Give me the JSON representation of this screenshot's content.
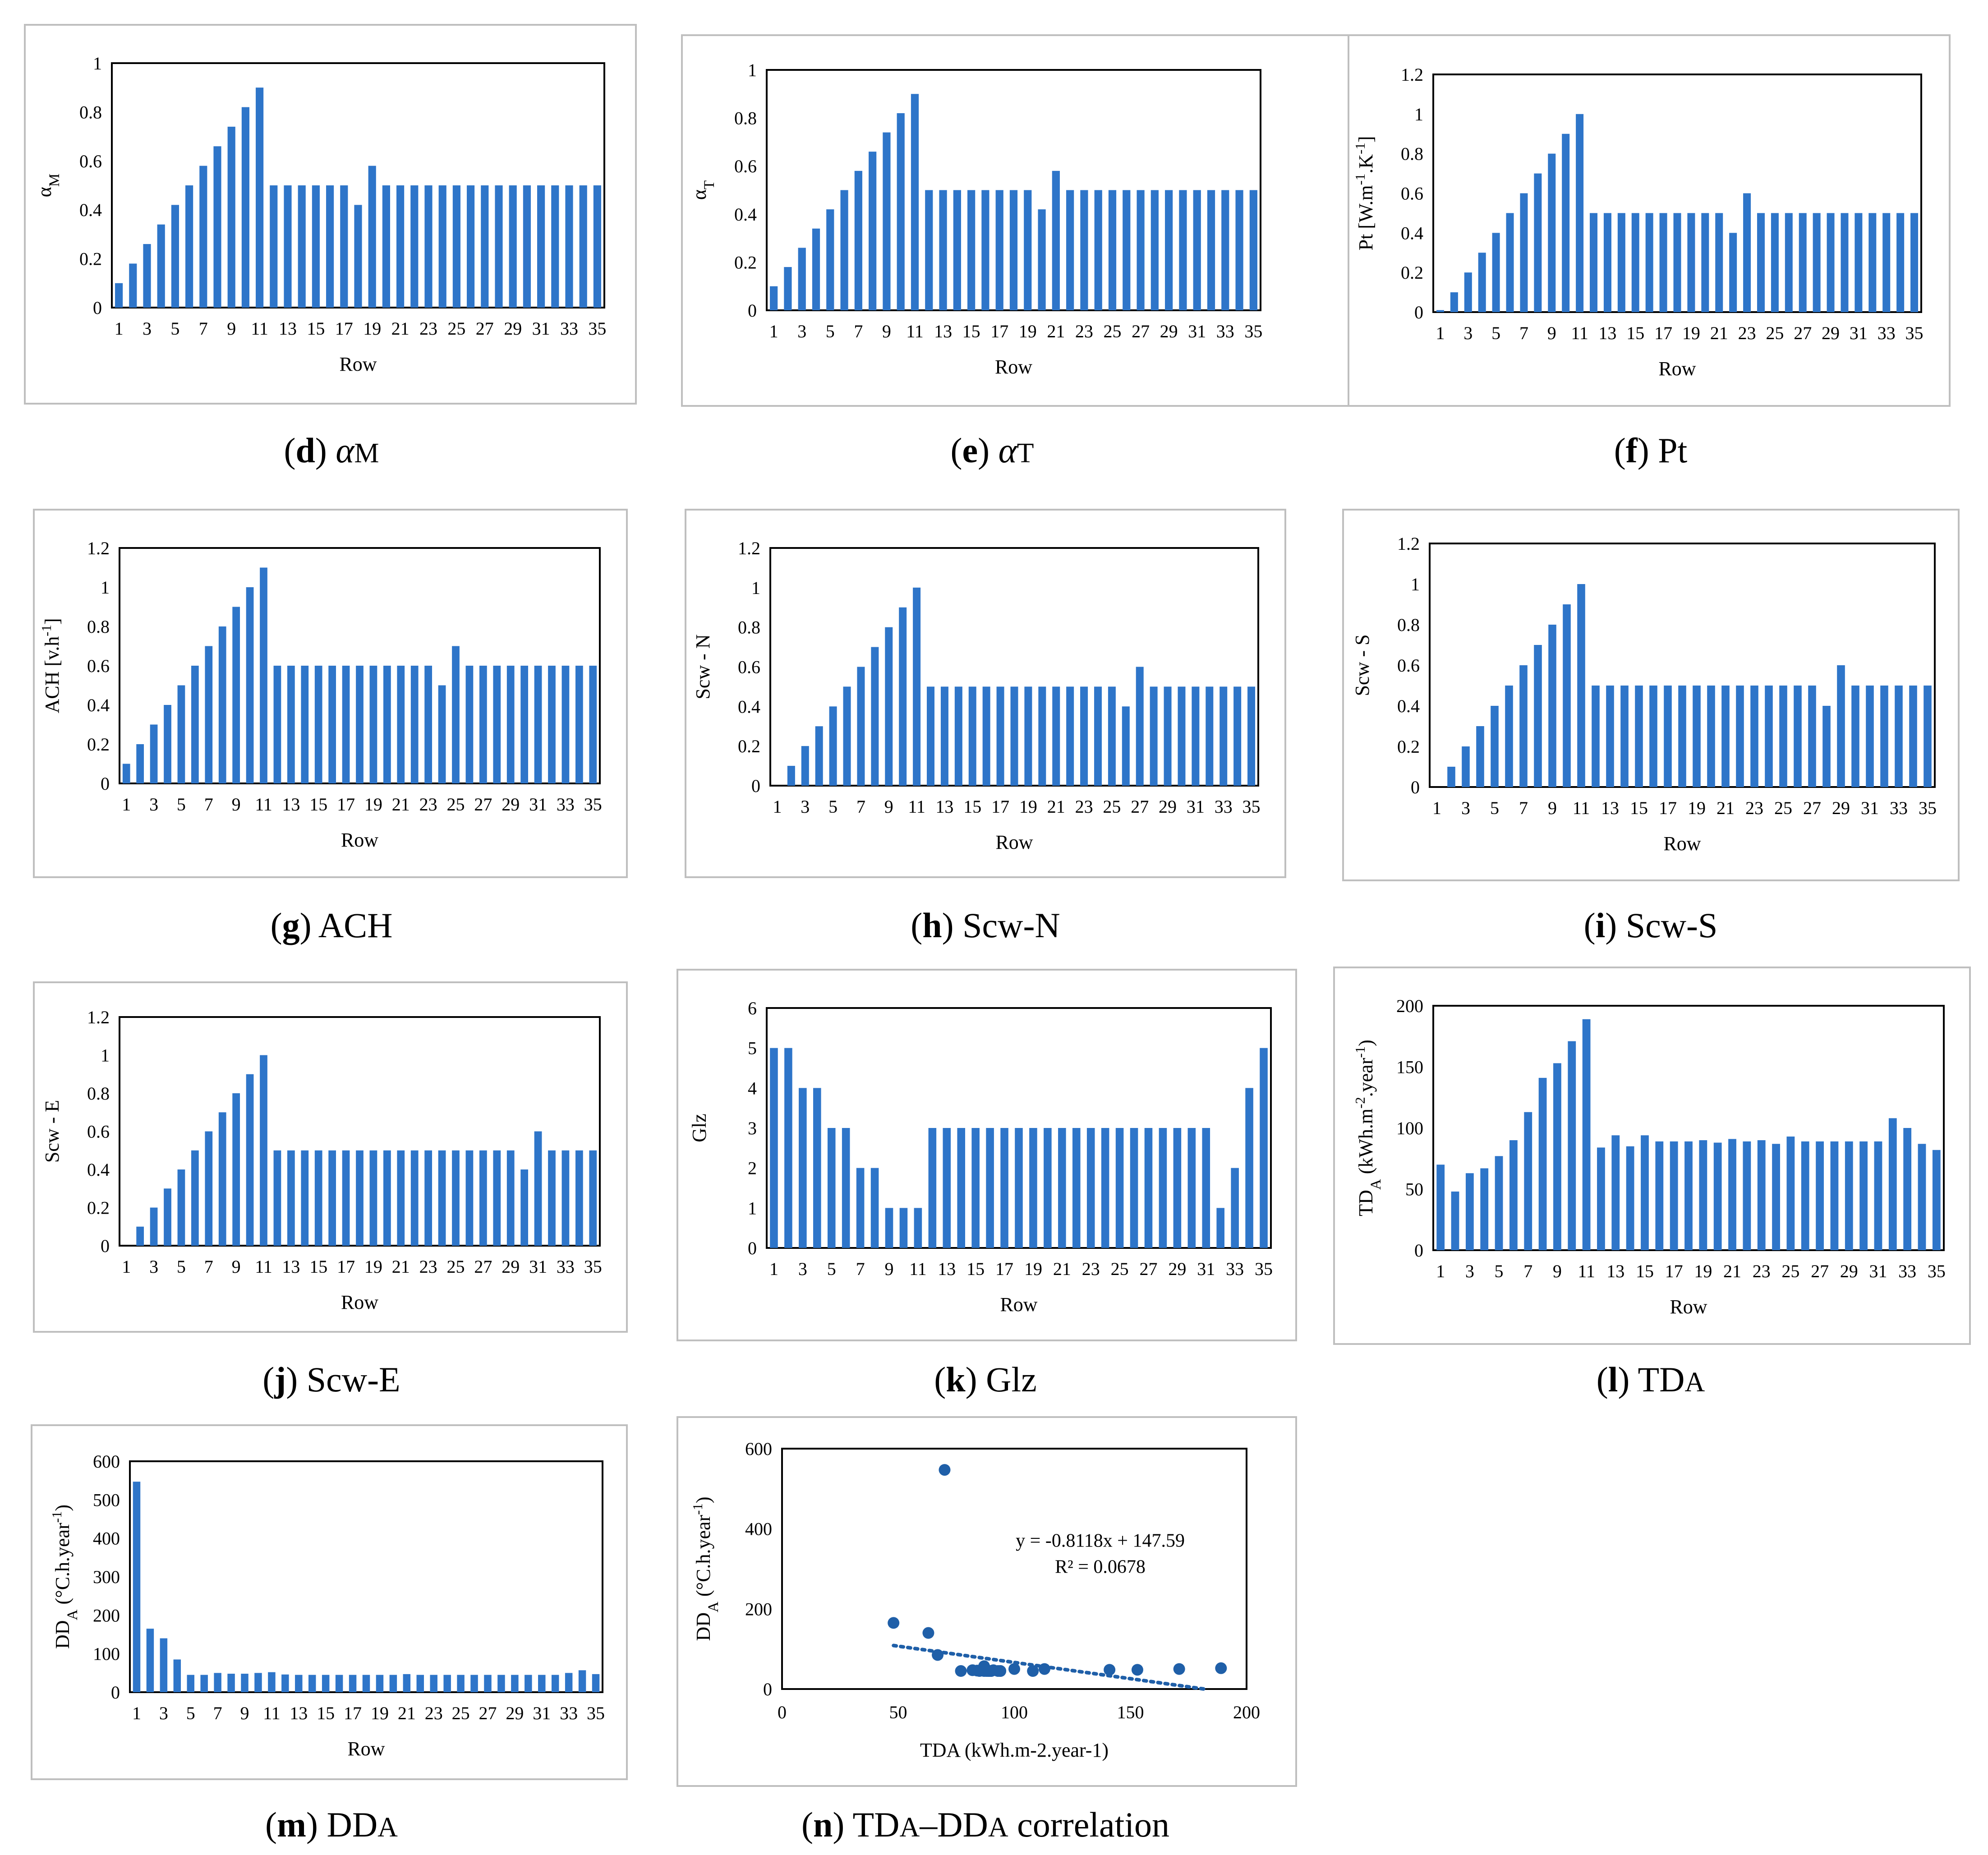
{
  "colors": {
    "bar": "#2E75C9",
    "frame": "#BFBFBF",
    "axis": "#000000",
    "point": "#1F5FA8"
  },
  "chart_data": [
    {
      "id": "d",
      "type": "bar",
      "caption_letter": "d",
      "caption_text": "αM",
      "ylabel": "αM",
      "xlabel": "Row",
      "ylim": [
        0,
        1
      ],
      "yticks": [
        "0",
        "0.2",
        "0.4",
        "0.6",
        "0.8",
        "1"
      ],
      "categories": [
        "1",
        "2",
        "3",
        "4",
        "5",
        "6",
        "7",
        "8",
        "9",
        "10",
        "11",
        "12",
        "13",
        "14",
        "15",
        "16",
        "17",
        "18",
        "19",
        "20",
        "21",
        "22",
        "23",
        "24",
        "25",
        "26",
        "27",
        "28",
        "29",
        "30",
        "31",
        "32",
        "33",
        "34",
        "35"
      ],
      "xticks": [
        "1",
        "3",
        "5",
        "7",
        "9",
        "11",
        "13",
        "15",
        "17",
        "19",
        "21",
        "23",
        "25",
        "27",
        "29",
        "31",
        "33",
        "35"
      ],
      "values": [
        0.1,
        0.18,
        0.26,
        0.34,
        0.42,
        0.5,
        0.58,
        0.66,
        0.74,
        0.82,
        0.9,
        0.5,
        0.5,
        0.5,
        0.5,
        0.5,
        0.5,
        0.42,
        0.58,
        0.5,
        0.5,
        0.5,
        0.5,
        0.5,
        0.5,
        0.5,
        0.5,
        0.5,
        0.5,
        0.5,
        0.5,
        0.5,
        0.5,
        0.5,
        0.5
      ]
    },
    {
      "id": "e",
      "type": "bar",
      "caption_letter": "e",
      "caption_text": "αT",
      "ylabel": "αT",
      "xlabel": "Row",
      "ylim": [
        0,
        1
      ],
      "yticks": [
        "0",
        "0.2",
        "0.4",
        "0.6",
        "0.8",
        "1"
      ],
      "categories": [
        "1",
        "2",
        "3",
        "4",
        "5",
        "6",
        "7",
        "8",
        "9",
        "10",
        "11",
        "12",
        "13",
        "14",
        "15",
        "16",
        "17",
        "18",
        "19",
        "20",
        "21",
        "22",
        "23",
        "24",
        "25",
        "26",
        "27",
        "28",
        "29",
        "30",
        "31",
        "32",
        "33",
        "34",
        "35"
      ],
      "xticks": [
        "1",
        "3",
        "5",
        "7",
        "9",
        "11",
        "13",
        "15",
        "17",
        "19",
        "21",
        "23",
        "25",
        "27",
        "29",
        "31",
        "33",
        "35"
      ],
      "values": [
        0.1,
        0.18,
        0.26,
        0.34,
        0.42,
        0.5,
        0.58,
        0.66,
        0.74,
        0.82,
        0.9,
        0.5,
        0.5,
        0.5,
        0.5,
        0.5,
        0.5,
        0.5,
        0.5,
        0.42,
        0.58,
        0.5,
        0.5,
        0.5,
        0.5,
        0.5,
        0.5,
        0.5,
        0.5,
        0.5,
        0.5,
        0.5,
        0.5,
        0.5,
        0.5
      ]
    },
    {
      "id": "f",
      "type": "bar",
      "caption_letter": "f",
      "caption_text": "Pt",
      "ylabel": "Pt [W.m-1.K-1]",
      "xlabel": "Row",
      "ylim": [
        0,
        1.2
      ],
      "yticks": [
        "0",
        "0.2",
        "0.4",
        "0.6",
        "0.8",
        "1",
        "1.2"
      ],
      "categories": [
        "1",
        "2",
        "3",
        "4",
        "5",
        "6",
        "7",
        "8",
        "9",
        "10",
        "11",
        "12",
        "13",
        "14",
        "15",
        "16",
        "17",
        "18",
        "19",
        "20",
        "21",
        "22",
        "23",
        "24",
        "25",
        "26",
        "27",
        "28",
        "29",
        "30",
        "31",
        "32",
        "33",
        "34",
        "35"
      ],
      "xticks": [
        "1",
        "3",
        "5",
        "7",
        "9",
        "11",
        "13",
        "15",
        "17",
        "19",
        "21",
        "23",
        "25",
        "27",
        "29",
        "31",
        "33",
        "35"
      ],
      "values": [
        0.01,
        0.1,
        0.2,
        0.3,
        0.4,
        0.5,
        0.6,
        0.7,
        0.8,
        0.9,
        1.0,
        0.5,
        0.5,
        0.5,
        0.5,
        0.5,
        0.5,
        0.5,
        0.5,
        0.5,
        0.5,
        0.4,
        0.6,
        0.5,
        0.5,
        0.5,
        0.5,
        0.5,
        0.5,
        0.5,
        0.5,
        0.5,
        0.5,
        0.5,
        0.5
      ]
    },
    {
      "id": "g",
      "type": "bar",
      "caption_letter": "g",
      "caption_text": "ACH",
      "ylabel": "ACH [v.h-1]",
      "xlabel": "Row",
      "ylim": [
        0,
        1.2
      ],
      "yticks": [
        "0",
        "0.2",
        "0.4",
        "0.6",
        "0.8",
        "1",
        "1.2"
      ],
      "categories": [
        "1",
        "2",
        "3",
        "4",
        "5",
        "6",
        "7",
        "8",
        "9",
        "10",
        "11",
        "12",
        "13",
        "14",
        "15",
        "16",
        "17",
        "18",
        "19",
        "20",
        "21",
        "22",
        "23",
        "24",
        "25",
        "26",
        "27",
        "28",
        "29",
        "30",
        "31",
        "32",
        "33",
        "34",
        "35"
      ],
      "xticks": [
        "1",
        "3",
        "5",
        "7",
        "9",
        "11",
        "13",
        "15",
        "17",
        "19",
        "21",
        "23",
        "25",
        "27",
        "29",
        "31",
        "33",
        "35"
      ],
      "values": [
        0.1,
        0.2,
        0.3,
        0.4,
        0.5,
        0.6,
        0.7,
        0.8,
        0.9,
        1.0,
        1.1,
        0.6,
        0.6,
        0.6,
        0.6,
        0.6,
        0.6,
        0.6,
        0.6,
        0.6,
        0.6,
        0.6,
        0.6,
        0.5,
        0.7,
        0.6,
        0.6,
        0.6,
        0.6,
        0.6,
        0.6,
        0.6,
        0.6,
        0.6,
        0.6
      ]
    },
    {
      "id": "h",
      "type": "bar",
      "caption_letter": "h",
      "caption_text": "Scw-N",
      "ylabel": "Scw - N",
      "xlabel": "Row",
      "ylim": [
        0,
        1.2
      ],
      "yticks": [
        "0",
        "0.2",
        "0.4",
        "0.6",
        "0.8",
        "1",
        "1.2"
      ],
      "categories": [
        "1",
        "2",
        "3",
        "4",
        "5",
        "6",
        "7",
        "8",
        "9",
        "10",
        "11",
        "12",
        "13",
        "14",
        "15",
        "16",
        "17",
        "18",
        "19",
        "20",
        "21",
        "22",
        "23",
        "24",
        "25",
        "26",
        "27",
        "28",
        "29",
        "30",
        "31",
        "32",
        "33",
        "34",
        "35"
      ],
      "xticks": [
        "1",
        "3",
        "5",
        "7",
        "9",
        "11",
        "13",
        "15",
        "17",
        "19",
        "21",
        "23",
        "25",
        "27",
        "29",
        "31",
        "33",
        "35"
      ],
      "values": [
        0,
        0.1,
        0.2,
        0.3,
        0.4,
        0.5,
        0.6,
        0.7,
        0.8,
        0.9,
        1.0,
        0.5,
        0.5,
        0.5,
        0.5,
        0.5,
        0.5,
        0.5,
        0.5,
        0.5,
        0.5,
        0.5,
        0.5,
        0.5,
        0.5,
        0.4,
        0.6,
        0.5,
        0.5,
        0.5,
        0.5,
        0.5,
        0.5,
        0.5,
        0.5
      ]
    },
    {
      "id": "i",
      "type": "bar",
      "caption_letter": "i",
      "caption_text": "Scw-S",
      "ylabel": "Scw - S",
      "xlabel": "Row",
      "ylim": [
        0,
        1.2
      ],
      "yticks": [
        "0",
        "0.2",
        "0.4",
        "0.6",
        "0.8",
        "1",
        "1.2"
      ],
      "categories": [
        "1",
        "2",
        "3",
        "4",
        "5",
        "6",
        "7",
        "8",
        "9",
        "10",
        "11",
        "12",
        "13",
        "14",
        "15",
        "16",
        "17",
        "18",
        "19",
        "20",
        "21",
        "22",
        "23",
        "24",
        "25",
        "26",
        "27",
        "28",
        "29",
        "30",
        "31",
        "32",
        "33",
        "34",
        "35"
      ],
      "xticks": [
        "1",
        "3",
        "5",
        "7",
        "9",
        "11",
        "13",
        "15",
        "17",
        "19",
        "21",
        "23",
        "25",
        "27",
        "29",
        "31",
        "33",
        "35"
      ],
      "values": [
        0,
        0.1,
        0.2,
        0.3,
        0.4,
        0.5,
        0.6,
        0.7,
        0.8,
        0.9,
        1.0,
        0.5,
        0.5,
        0.5,
        0.5,
        0.5,
        0.5,
        0.5,
        0.5,
        0.5,
        0.5,
        0.5,
        0.5,
        0.5,
        0.5,
        0.5,
        0.5,
        0.4,
        0.6,
        0.5,
        0.5,
        0.5,
        0.5,
        0.5,
        0.5
      ]
    },
    {
      "id": "j",
      "type": "bar",
      "caption_letter": "j",
      "caption_text": "Scw-E",
      "ylabel": "Scw - E",
      "xlabel": "Row",
      "ylim": [
        0,
        1.2
      ],
      "yticks": [
        "0",
        "0.2",
        "0.4",
        "0.6",
        "0.8",
        "1",
        "1.2"
      ],
      "categories": [
        "1",
        "2",
        "3",
        "4",
        "5",
        "6",
        "7",
        "8",
        "9",
        "10",
        "11",
        "12",
        "13",
        "14",
        "15",
        "16",
        "17",
        "18",
        "19",
        "20",
        "21",
        "22",
        "23",
        "24",
        "25",
        "26",
        "27",
        "28",
        "29",
        "30",
        "31",
        "32",
        "33",
        "34",
        "35"
      ],
      "xticks": [
        "1",
        "3",
        "5",
        "7",
        "9",
        "11",
        "13",
        "15",
        "17",
        "19",
        "21",
        "23",
        "25",
        "27",
        "29",
        "31",
        "33",
        "35"
      ],
      "values": [
        0,
        0.1,
        0.2,
        0.3,
        0.4,
        0.5,
        0.6,
        0.7,
        0.8,
        0.9,
        1.0,
        0.5,
        0.5,
        0.5,
        0.5,
        0.5,
        0.5,
        0.5,
        0.5,
        0.5,
        0.5,
        0.5,
        0.5,
        0.5,
        0.5,
        0.5,
        0.5,
        0.5,
        0.5,
        0.4,
        0.6,
        0.5,
        0.5,
        0.5,
        0.5
      ]
    },
    {
      "id": "k",
      "type": "bar",
      "caption_letter": "k",
      "caption_text": "Glz",
      "ylabel": "Glz",
      "xlabel": "Row",
      "ylim": [
        0,
        6
      ],
      "yticks": [
        "0",
        "1",
        "2",
        "3",
        "4",
        "5",
        "6"
      ],
      "categories": [
        "1",
        "2",
        "3",
        "4",
        "5",
        "6",
        "7",
        "8",
        "9",
        "10",
        "11",
        "12",
        "13",
        "14",
        "15",
        "16",
        "17",
        "18",
        "19",
        "20",
        "21",
        "22",
        "23",
        "24",
        "25",
        "26",
        "27",
        "28",
        "29",
        "30",
        "31",
        "32",
        "33",
        "34",
        "35"
      ],
      "xticks": [
        "1",
        "3",
        "5",
        "7",
        "9",
        "11",
        "13",
        "15",
        "17",
        "19",
        "21",
        "23",
        "25",
        "27",
        "29",
        "31",
        "33",
        "35"
      ],
      "values": [
        5,
        5,
        4,
        4,
        3,
        3,
        2,
        2,
        1,
        1,
        1,
        3,
        3,
        3,
        3,
        3,
        3,
        3,
        3,
        3,
        3,
        3,
        3,
        3,
        3,
        3,
        3,
        3,
        3,
        3,
        3,
        1,
        2,
        4,
        5
      ]
    },
    {
      "id": "l",
      "type": "bar",
      "caption_letter": "l",
      "caption_text": "TDA",
      "ylabel": "TDA (kWh.m-2.year-1)",
      "xlabel": "Row",
      "ylim": [
        0,
        200
      ],
      "yticks": [
        "0",
        "50",
        "100",
        "150",
        "200"
      ],
      "categories": [
        "1",
        "2",
        "3",
        "4",
        "5",
        "6",
        "7",
        "8",
        "9",
        "10",
        "11",
        "12",
        "13",
        "14",
        "15",
        "16",
        "17",
        "18",
        "19",
        "20",
        "21",
        "22",
        "23",
        "24",
        "25",
        "26",
        "27",
        "28",
        "29",
        "30",
        "31",
        "32",
        "33",
        "34",
        "35"
      ],
      "xticks": [
        "1",
        "3",
        "5",
        "7",
        "9",
        "11",
        "13",
        "15",
        "17",
        "19",
        "21",
        "23",
        "25",
        "27",
        "29",
        "31",
        "33",
        "35"
      ],
      "values": [
        70,
        48,
        63,
        67,
        77,
        90,
        113,
        141,
        153,
        171,
        189,
        84,
        94,
        85,
        94,
        89,
        89,
        89,
        90,
        88,
        91,
        89,
        90,
        87,
        93,
        89,
        89,
        89,
        89,
        89,
        89,
        108,
        100,
        87,
        82
      ]
    },
    {
      "id": "m",
      "type": "bar",
      "caption_letter": "m",
      "caption_text": "DDA",
      "ylabel": "DDA (°C.h.year-1)",
      "xlabel": "Row",
      "ylim": [
        0,
        600
      ],
      "yticks": [
        "0",
        "100",
        "200",
        "300",
        "400",
        "500",
        "600"
      ],
      "categories": [
        "1",
        "2",
        "3",
        "4",
        "5",
        "6",
        "7",
        "8",
        "9",
        "10",
        "11",
        "12",
        "13",
        "14",
        "15",
        "16",
        "17",
        "18",
        "19",
        "20",
        "21",
        "22",
        "23",
        "24",
        "25",
        "26",
        "27",
        "28",
        "29",
        "30",
        "31",
        "32",
        "33",
        "34",
        "35"
      ],
      "xticks": [
        "1",
        "3",
        "5",
        "7",
        "9",
        "11",
        "13",
        "15",
        "17",
        "19",
        "21",
        "23",
        "25",
        "27",
        "29",
        "31",
        "33",
        "35"
      ],
      "values": [
        547,
        165,
        140,
        85,
        45,
        45,
        50,
        48,
        48,
        50,
        52,
        46,
        45,
        45,
        45,
        45,
        45,
        45,
        45,
        45,
        47,
        45,
        45,
        45,
        45,
        45,
        45,
        45,
        45,
        45,
        45,
        45,
        50,
        57,
        47
      ]
    },
    {
      "id": "n",
      "type": "scatter",
      "caption_letter": "n",
      "caption_text": "TDA–DDA correlation",
      "xlabel": "TDA (kWh.m-2.year-1)",
      "ylabel": "DDA (°C.h.year-1)",
      "xlim": [
        0,
        200
      ],
      "ylim": [
        0,
        600
      ],
      "xticks": [
        "0",
        "50",
        "100",
        "150",
        "200"
      ],
      "yticks": [
        "0",
        "200",
        "400",
        "600"
      ],
      "x": [
        70,
        48,
        63,
        67,
        77,
        90,
        113,
        141,
        153,
        171,
        189,
        84,
        94,
        85,
        94,
        89,
        89,
        89,
        90,
        88,
        91,
        89,
        90,
        87,
        93,
        89,
        89,
        89,
        89,
        89,
        89,
        108,
        100,
        87,
        82
      ],
      "y": [
        547,
        165,
        140,
        85,
        45,
        45,
        50,
        48,
        48,
        50,
        52,
        46,
        45,
        45,
        45,
        45,
        45,
        45,
        45,
        45,
        47,
        45,
        45,
        45,
        45,
        45,
        45,
        45,
        45,
        45,
        45,
        45,
        50,
        57,
        47
      ],
      "trendline": {
        "slope": -0.8118,
        "intercept": 147.59,
        "x_range": [
          48,
          189
        ]
      },
      "equation": "y = -0.8118x + 147.59",
      "r2": "R² = 0.0678"
    }
  ]
}
